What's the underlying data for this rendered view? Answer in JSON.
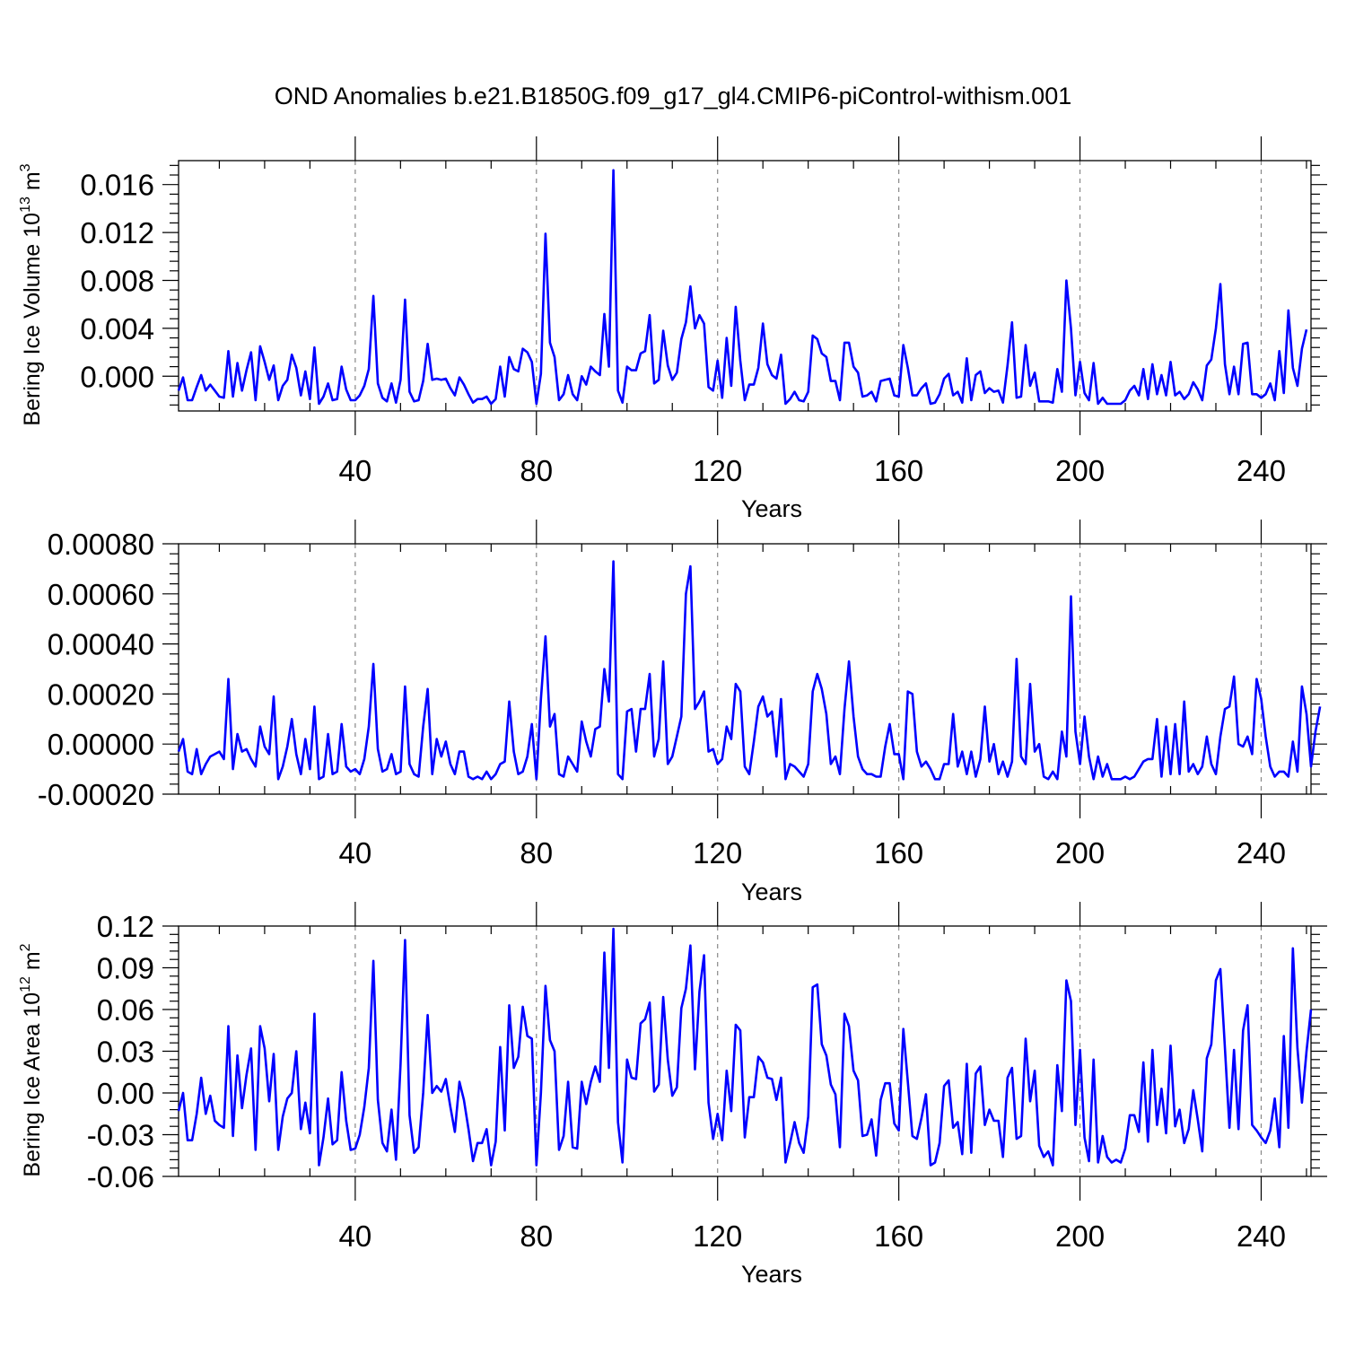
{
  "chart_data": [
    {
      "type": "line",
      "title": "OND Anomalies b.e21.B1850G.f09_g17_gl4.CMIP6-piControl-withism.001",
      "xlabel": "Years",
      "ylabel_main": "Bering Ice Volume 10",
      "ylabel_exp": "13",
      "ylabel_unit": " m",
      "ylabel_unit_exp": "3",
      "xlim": [
        1,
        251
      ],
      "ylim": [
        -0.0029,
        0.018
      ],
      "x_ticks": [
        40,
        80,
        120,
        160,
        200,
        240
      ],
      "x_tick_labels": [
        "40",
        "80",
        "120",
        "160",
        "200",
        "240"
      ],
      "y_ticks": [
        0.0,
        0.004,
        0.008,
        0.012,
        0.016
      ],
      "y_tick_labels": [
        "0.000",
        "0.004",
        "0.008",
        "0.012",
        "0.016"
      ],
      "y_minor_step": 0.0008,
      "grid": "vertical dashed at major x ticks",
      "color": "#0000ff",
      "x_start": 1,
      "values": [
        -0.0012,
        -0.0001,
        -0.002,
        -0.002,
        -0.0009,
        0.0001,
        -0.0012,
        -0.0007,
        -0.0012,
        -0.0017,
        -0.0018,
        0.0021,
        -0.0017,
        0.0011,
        -0.0012,
        0.0005,
        0.002,
        -0.002,
        0.0025,
        0.0012,
        -0.0003,
        0.0009,
        -0.002,
        -0.0008,
        -0.0003,
        0.0018,
        0.0007,
        -0.0016,
        0.0004,
        -0.0019,
        0.0024,
        -0.0023,
        -0.0017,
        -0.0006,
        -0.002,
        -0.0019,
        0.0008,
        -0.0011,
        -0.002,
        -0.002,
        -0.0016,
        -0.0008,
        0.0006,
        0.0067,
        -0.0006,
        -0.0018,
        -0.0021,
        -0.0006,
        -0.0022,
        -0.0003,
        0.0064,
        -0.0013,
        -0.0021,
        -0.002,
        -0.0004,
        0.0027,
        -0.0003,
        -0.0002,
        -0.0003,
        -0.0002,
        -0.001,
        -0.0016,
        -0.0001,
        -0.0007,
        -0.0015,
        -0.0022,
        -0.0019,
        -0.0019,
        -0.0017,
        -0.0023,
        -0.0019,
        0.0008,
        -0.0017,
        0.0016,
        0.0006,
        0.0004,
        0.0023,
        0.002,
        0.0012,
        -0.0023,
        0.0002,
        0.0119,
        0.0028,
        0.0016,
        -0.002,
        -0.0015,
        0.0001,
        -0.0015,
        -0.002,
        0.0,
        -0.0007,
        0.0008,
        0.0004,
        0.0001,
        0.0052,
        0.0008,
        0.0172,
        -0.0012,
        -0.0022,
        0.0008,
        0.0005,
        0.0005,
        0.0019,
        0.0021,
        0.0051,
        -0.0006,
        -0.0003,
        0.0038,
        0.0009,
        -0.0003,
        0.0003,
        0.0031,
        0.0045,
        0.0075,
        0.004,
        0.0051,
        0.0044,
        -0.0009,
        -0.0012,
        0.0013,
        -0.0018,
        0.0032,
        -0.0008,
        0.0058,
        0.0013,
        -0.002,
        -0.0007,
        -0.0007,
        0.0007,
        0.0044,
        0.001,
        0.0001,
        -0.0002,
        0.0018,
        -0.0023,
        -0.0019,
        -0.0013,
        -0.002,
        -0.0021,
        -0.0013,
        0.0034,
        0.0031,
        0.0019,
        0.0016,
        -0.0004,
        -0.0004,
        -0.002,
        0.0028,
        0.0028,
        0.0008,
        0.0003,
        -0.0017,
        -0.0016,
        -0.0013,
        -0.0021,
        -0.0004,
        -0.0003,
        -0.0002,
        -0.0016,
        -0.0017,
        0.0026,
        0.0007,
        -0.0016,
        -0.0016,
        -0.001,
        -0.0006,
        -0.0023,
        -0.0022,
        -0.0015,
        -0.0002,
        0.0002,
        -0.0016,
        -0.0013,
        -0.0022,
        0.0015,
        -0.002,
        0.0001,
        0.0004,
        -0.0014,
        -0.001,
        -0.0013,
        -0.0012,
        -0.0022,
        0.0009,
        0.0045,
        -0.0018,
        -0.0017,
        0.0026,
        -0.0008,
        0.0003,
        -0.0021,
        -0.0021,
        -0.0021,
        -0.0022,
        0.0006,
        -0.0013,
        0.008,
        0.004,
        -0.0016,
        0.0012,
        -0.0014,
        -0.002,
        0.0011,
        -0.0023,
        -0.0018,
        -0.0023,
        -0.0023,
        -0.0023,
        -0.0023,
        -0.002,
        -0.0012,
        -0.0008,
        -0.0016,
        0.0006,
        -0.0019,
        0.001,
        -0.0015,
        0.0001,
        -0.0016,
        0.0012,
        -0.0016,
        -0.0013,
        -0.0019,
        -0.0015,
        -0.0005,
        -0.0011,
        -0.002,
        0.0009,
        0.0014,
        0.004,
        0.0077,
        0.001,
        -0.0015,
        0.0008,
        -0.0015,
        0.0027,
        0.0028,
        -0.0015,
        -0.0015,
        -0.0018,
        -0.0015,
        -0.0006,
        -0.002,
        0.0021,
        -0.0014,
        0.0055,
        0.0007,
        -0.0008,
        0.0023,
        0.0039
      ]
    },
    {
      "type": "line",
      "xlabel": "Years",
      "xlim": [
        1,
        251
      ],
      "ylim": [
        -0.0002,
        0.0008
      ],
      "x_ticks": [
        40,
        80,
        120,
        160,
        200,
        240
      ],
      "x_tick_labels": [
        "40",
        "80",
        "120",
        "160",
        "200",
        "240"
      ],
      "y_ticks": [
        -0.0002,
        0.0,
        0.0002,
        0.0004,
        0.0006,
        0.0008
      ],
      "y_tick_labels": [
        "-0.00020",
        "0.00000",
        "0.00020",
        "0.00040",
        "0.00060",
        "0.00080"
      ],
      "y_minor_step": 4e-05,
      "grid": "vertical dashed at major x ticks",
      "color": "#0000ff",
      "x_start": 1,
      "values": [
        -3e-05,
        2e-05,
        -0.00011,
        -0.00012,
        -2e-05,
        -0.00012,
        -8e-05,
        -5e-05,
        -4e-05,
        -3e-05,
        -6e-05,
        0.00026,
        -0.0001,
        4e-05,
        -3e-05,
        -2e-05,
        -6e-05,
        -9e-05,
        7e-05,
        -1e-05,
        -4e-05,
        0.00019,
        -0.00014,
        -9e-05,
        -1e-05,
        0.0001,
        -4e-05,
        -0.00012,
        2e-05,
        -0.0001,
        0.00015,
        -0.00014,
        -0.00013,
        4e-05,
        -0.00012,
        -0.00011,
        8e-05,
        -9e-05,
        -0.00011,
        -0.0001,
        -0.00012,
        -6e-05,
        7e-05,
        0.00032,
        -2e-05,
        -0.00011,
        -0.0001,
        -4e-05,
        -0.00012,
        -0.00011,
        0.00023,
        -8e-05,
        -0.00012,
        -0.00013,
        7e-05,
        0.00022,
        -0.00012,
        2e-05,
        -5e-05,
        1e-05,
        -8e-05,
        -0.00012,
        -3e-05,
        -3e-05,
        -0.00013,
        -0.00014,
        -0.00013,
        -0.00014,
        -0.00011,
        -0.00014,
        -0.00012,
        -8e-05,
        -7e-05,
        0.00017,
        -3e-05,
        -0.00012,
        -0.00011,
        -5e-05,
        8e-05,
        -0.00014,
        0.00018,
        0.00043,
        7e-05,
        0.00012,
        -0.00012,
        -0.00013,
        -5e-05,
        -8e-05,
        -0.00011,
        9e-05,
        1e-05,
        -5e-05,
        6e-05,
        7e-05,
        0.0003,
        0.00017,
        0.00073,
        -0.00012,
        -0.00014,
        0.00013,
        0.00014,
        -3e-05,
        0.00014,
        0.00014,
        0.00028,
        -5e-05,
        2e-05,
        0.00033,
        -8e-05,
        -5e-05,
        3e-05,
        0.00011,
        0.0006,
        0.00071,
        0.00014,
        0.00017,
        0.00021,
        -3e-05,
        -2e-05,
        -8e-05,
        -6e-05,
        7e-05,
        2e-05,
        0.00024,
        0.00021,
        -9e-05,
        -0.00012,
        1e-05,
        0.00015,
        0.00019,
        0.00011,
        0.00013,
        -5e-05,
        0.00018,
        -0.00014,
        -8e-05,
        -9e-05,
        -0.00011,
        -0.00013,
        -8e-05,
        0.00021,
        0.00028,
        0.00022,
        0.00012,
        -8e-05,
        -5e-05,
        -0.00012,
        0.00014,
        0.00033,
        0.00011,
        -5e-05,
        -0.0001,
        -0.00012,
        -0.00012,
        -0.00013,
        -0.00013,
        -1e-05,
        8e-05,
        -4e-05,
        -4e-05,
        -0.00014,
        0.00021,
        0.0002,
        -3e-05,
        -9e-05,
        -7e-05,
        -0.0001,
        -0.00014,
        -0.00014,
        -8e-05,
        -8e-05,
        0.00012,
        -9e-05,
        -3e-05,
        -0.00012,
        -3e-05,
        -0.00013,
        -6e-05,
        0.00015,
        -7e-05,
        0.0,
        -0.00012,
        -7e-05,
        -0.00013,
        -7e-05,
        0.00034,
        -5e-05,
        -8e-05,
        0.00024,
        -3e-05,
        0.0,
        -0.00013,
        -0.00014,
        -0.00011,
        -0.00014,
        5e-05,
        -5e-05,
        0.00059,
        5e-05,
        -8e-05,
        0.00011,
        -5e-05,
        -0.00014,
        -5e-05,
        -0.00013,
        -8e-05,
        -0.00014,
        -0.00014,
        -0.00014,
        -0.00013,
        -0.00014,
        -0.00013,
        -0.0001,
        -7e-05,
        -6e-05,
        -6e-05,
        0.0001,
        -0.00013,
        7e-05,
        -0.00012,
        8e-05,
        -0.00012,
        0.00017,
        -0.00011,
        -8e-05,
        -0.00012,
        -9e-05,
        3e-05,
        -8e-05,
        -0.00012,
        3e-05,
        0.00014,
        0.00015,
        0.00027,
        0.0,
        -1e-05,
        3e-05,
        -4e-05,
        0.00026,
        0.00018,
        3e-05,
        -9e-05,
        -0.00013,
        -0.00011,
        -0.00011,
        -0.00013,
        1e-05,
        -0.00011,
        0.00023,
        0.00012,
        -9e-05,
        5e-05,
        0.00015
      ]
    },
    {
      "type": "line",
      "xlabel": "Years",
      "ylabel_main": "Bering Ice Area 10",
      "ylabel_exp": "12",
      "ylabel_unit": " m",
      "ylabel_unit_exp": "2",
      "xlim": [
        1,
        251
      ],
      "ylim": [
        -0.06,
        0.12
      ],
      "x_ticks": [
        40,
        80,
        120,
        160,
        200,
        240
      ],
      "x_tick_labels": [
        "40",
        "80",
        "120",
        "160",
        "200",
        "240"
      ],
      "y_ticks": [
        -0.06,
        -0.03,
        0.0,
        0.03,
        0.06,
        0.09,
        0.12
      ],
      "y_tick_labels": [
        "-0.06",
        "-0.03",
        "0.00",
        "0.03",
        "0.06",
        "0.09",
        "0.12"
      ],
      "y_minor_step": 0.006,
      "grid": "vertical dashed at major x ticks",
      "color": "#0000ff",
      "x_start": 1,
      "values": [
        -0.013,
        0.0,
        -0.034,
        -0.034,
        -0.015,
        0.011,
        -0.015,
        -0.002,
        -0.02,
        -0.023,
        -0.025,
        0.048,
        -0.031,
        0.027,
        -0.011,
        0.013,
        0.032,
        -0.041,
        0.048,
        0.032,
        -0.006,
        0.028,
        -0.041,
        -0.017,
        -0.004,
        0.0,
        0.03,
        -0.026,
        -0.007,
        -0.029,
        0.057,
        -0.052,
        -0.032,
        -0.004,
        -0.037,
        -0.034,
        0.015,
        -0.02,
        -0.041,
        -0.04,
        -0.03,
        -0.01,
        0.018,
        0.095,
        -0.005,
        -0.036,
        -0.042,
        -0.012,
        -0.048,
        0.021,
        0.11,
        -0.016,
        -0.043,
        -0.039,
        0.0,
        0.056,
        0.0,
        0.005,
        0.001,
        0.01,
        -0.01,
        -0.028,
        0.008,
        -0.005,
        -0.026,
        -0.049,
        -0.036,
        -0.036,
        -0.026,
        -0.052,
        -0.035,
        0.033,
        -0.027,
        0.063,
        0.018,
        0.026,
        0.062,
        0.041,
        0.039,
        -0.052,
        0.0,
        0.077,
        0.038,
        0.03,
        -0.041,
        -0.031,
        0.008,
        -0.039,
        -0.04,
        0.008,
        -0.008,
        0.008,
        0.019,
        0.008,
        0.101,
        0.018,
        0.118,
        -0.021,
        -0.05,
        0.024,
        0.011,
        0.01,
        0.05,
        0.053,
        0.065,
        0.001,
        0.006,
        0.069,
        0.024,
        -0.002,
        0.004,
        0.061,
        0.075,
        0.106,
        0.017,
        0.073,
        0.099,
        -0.007,
        -0.033,
        -0.015,
        -0.034,
        0.016,
        -0.013,
        0.049,
        0.045,
        -0.032,
        -0.003,
        -0.003,
        0.026,
        0.022,
        0.011,
        0.01,
        -0.005,
        0.011,
        -0.05,
        -0.036,
        -0.021,
        -0.036,
        -0.043,
        -0.017,
        0.076,
        0.078,
        0.035,
        0.027,
        0.006,
        -0.001,
        -0.039,
        0.057,
        0.048,
        0.016,
        0.009,
        -0.031,
        -0.03,
        -0.019,
        -0.045,
        -0.005,
        0.007,
        0.007,
        -0.022,
        -0.027,
        0.046,
        0.008,
        -0.031,
        -0.033,
        -0.018,
        -0.001,
        -0.052,
        -0.05,
        -0.036,
        0.005,
        0.009,
        -0.025,
        -0.021,
        -0.044,
        0.021,
        -0.043,
        0.014,
        0.019,
        -0.023,
        -0.012,
        -0.02,
        -0.02,
        -0.046,
        0.011,
        0.018,
        -0.033,
        -0.031,
        0.039,
        -0.006,
        0.016,
        -0.038,
        -0.046,
        -0.042,
        -0.052,
        0.02,
        -0.013,
        0.081,
        0.066,
        -0.023,
        0.031,
        -0.032,
        -0.049,
        0.024,
        -0.05,
        -0.031,
        -0.046,
        -0.05,
        -0.048,
        -0.05,
        -0.04,
        -0.016,
        -0.016,
        -0.028,
        0.022,
        -0.035,
        0.031,
        -0.023,
        0.003,
        -0.029,
        0.034,
        -0.024,
        -0.012,
        -0.036,
        -0.026,
        0.002,
        -0.019,
        -0.042,
        0.025,
        0.035,
        0.081,
        0.089,
        0.032,
        -0.025,
        0.031,
        -0.026,
        0.045,
        0.063,
        -0.023,
        -0.027,
        -0.032,
        -0.036,
        -0.027,
        -0.004,
        -0.039,
        0.041,
        -0.025,
        0.104,
        0.032,
        -0.007,
        0.03,
        0.06
      ]
    }
  ]
}
